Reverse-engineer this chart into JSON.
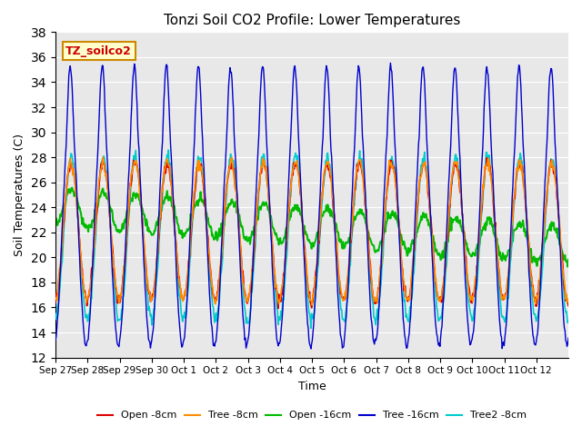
{
  "title": "Tonzi Soil CO2 Profile: Lower Temperatures",
  "xlabel": "Time",
  "ylabel": "Soil Temperatures (C)",
  "ylim": [
    12,
    38
  ],
  "yticks": [
    12,
    14,
    16,
    18,
    20,
    22,
    24,
    26,
    28,
    30,
    32,
    34,
    36,
    38
  ],
  "xtick_labels": [
    "Sep 27",
    "Sep 28",
    "Sep 29",
    "Sep 30",
    "Oct 1",
    "Oct 2",
    "Oct 3",
    "Oct 4",
    "Oct 5",
    "Oct 6",
    "Oct 7",
    "Oct 8",
    "Oct 9",
    "Oct 10",
    "Oct 11",
    "Oct 12"
  ],
  "n_days": 16,
  "legend_label": "TZ_soilco2",
  "series": {
    "open8": {
      "label": "Open -8cm",
      "color": "#dd0000"
    },
    "tree8": {
      "label": "Tree -8cm",
      "color": "#ff8c00"
    },
    "open16": {
      "label": "Open -16cm",
      "color": "#00bb00"
    },
    "tree16": {
      "label": "Tree -16cm",
      "color": "#0000cc"
    },
    "tree2_8": {
      "label": "Tree2 -8cm",
      "color": "#00cccc"
    }
  },
  "bg_color": "#e8e8e8"
}
